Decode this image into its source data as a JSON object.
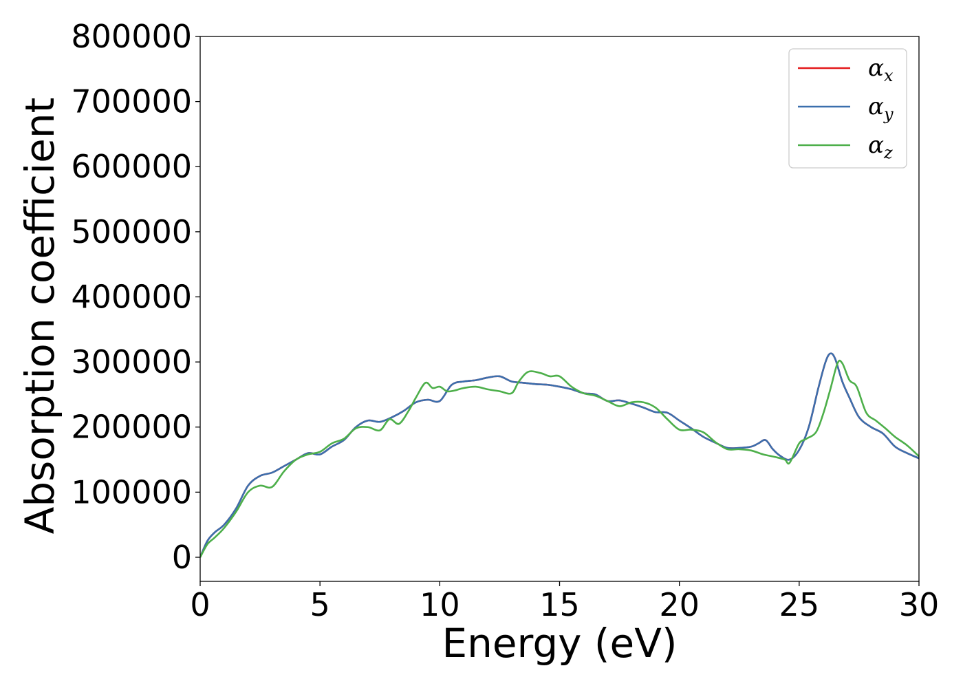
{
  "chart_data": {
    "type": "line",
    "xlabel": "Energy (eV)",
    "ylabel": "Absorption coefficient",
    "xlim": [
      0,
      30
    ],
    "ylim": [
      -37000,
      800000
    ],
    "x_ticks": [
      "0",
      "5",
      "10",
      "15",
      "20",
      "25",
      "30"
    ],
    "y_ticks": [
      "0",
      "100000",
      "200000",
      "300000",
      "400000",
      "500000",
      "600000",
      "700000",
      "800000"
    ],
    "grid": false,
    "legend_position": "top-right",
    "series": [
      {
        "name": "α_x",
        "symbol": "α",
        "subscript": "x",
        "color": "#e41a1c",
        "x": [
          0,
          0.3,
          0.6,
          1.0,
          1.5,
          2.0,
          2.5,
          3.0,
          3.5,
          4.0,
          4.5,
          5.0,
          5.5,
          6.0,
          6.5,
          7.0,
          7.5,
          8.0,
          8.5,
          9.0,
          9.5,
          10.0,
          10.5,
          11.0,
          11.5,
          12.0,
          12.5,
          13.0,
          13.5,
          14.0,
          14.5,
          15.0,
          15.5,
          16.0,
          16.5,
          17.0,
          17.5,
          18.0,
          18.5,
          19.0,
          19.5,
          20.0,
          20.5,
          21.0,
          21.5,
          22.0,
          22.5,
          23.0,
          23.3,
          23.6,
          23.9,
          24.2,
          24.6,
          25.0,
          25.4,
          25.8,
          26.1,
          26.3,
          26.5,
          26.8,
          27.1,
          27.5,
          28.0,
          28.5,
          29.0,
          29.5,
          30.0
        ],
        "values": [
          0,
          25000,
          38000,
          50000,
          75000,
          110000,
          125000,
          130000,
          140000,
          150000,
          160000,
          158000,
          170000,
          180000,
          200000,
          210000,
          208000,
          215000,
          225000,
          238000,
          242000,
          240000,
          265000,
          270000,
          272000,
          276000,
          278000,
          270000,
          268000,
          266000,
          265000,
          262000,
          258000,
          252000,
          250000,
          240000,
          241000,
          236000,
          230000,
          223000,
          222000,
          210000,
          198000,
          185000,
          176000,
          168000,
          168000,
          170000,
          175000,
          180000,
          166000,
          156000,
          150000,
          165000,
          200000,
          260000,
          300000,
          313000,
          305000,
          270000,
          245000,
          215000,
          200000,
          190000,
          170000,
          160000,
          152000
        ]
      },
      {
        "name": "α_y",
        "symbol": "α",
        "subscript": "y",
        "color": "#3b6fad",
        "x": [
          0,
          0.3,
          0.6,
          1.0,
          1.5,
          2.0,
          2.5,
          3.0,
          3.5,
          4.0,
          4.5,
          5.0,
          5.5,
          6.0,
          6.5,
          7.0,
          7.5,
          8.0,
          8.5,
          9.0,
          9.5,
          10.0,
          10.5,
          11.0,
          11.5,
          12.0,
          12.5,
          13.0,
          13.5,
          14.0,
          14.5,
          15.0,
          15.5,
          16.0,
          16.5,
          17.0,
          17.5,
          18.0,
          18.5,
          19.0,
          19.5,
          20.0,
          20.5,
          21.0,
          21.5,
          22.0,
          22.5,
          23.0,
          23.3,
          23.6,
          23.9,
          24.2,
          24.6,
          25.0,
          25.4,
          25.8,
          26.1,
          26.3,
          26.5,
          26.8,
          27.1,
          27.5,
          28.0,
          28.5,
          29.0,
          29.5,
          30.0
        ],
        "values": [
          0,
          25000,
          38000,
          50000,
          75000,
          110000,
          125000,
          130000,
          140000,
          150000,
          160000,
          158000,
          170000,
          180000,
          200000,
          210000,
          208000,
          215000,
          225000,
          238000,
          242000,
          240000,
          265000,
          270000,
          272000,
          276000,
          278000,
          270000,
          268000,
          266000,
          265000,
          262000,
          258000,
          252000,
          250000,
          240000,
          241000,
          236000,
          230000,
          223000,
          222000,
          210000,
          198000,
          185000,
          176000,
          168000,
          168000,
          170000,
          175000,
          180000,
          166000,
          156000,
          150000,
          165000,
          200000,
          260000,
          300000,
          313000,
          305000,
          270000,
          245000,
          215000,
          200000,
          190000,
          170000,
          160000,
          152000
        ]
      },
      {
        "name": "α_z",
        "symbol": "α",
        "subscript": "z",
        "color": "#4daf4a",
        "x": [
          0,
          0.3,
          0.6,
          1.0,
          1.5,
          2.0,
          2.5,
          3.0,
          3.5,
          4.0,
          4.5,
          5.0,
          5.5,
          6.0,
          6.5,
          7.0,
          7.5,
          7.9,
          8.3,
          8.7,
          9.0,
          9.4,
          9.7,
          10.0,
          10.3,
          10.6,
          11.0,
          11.5,
          12.0,
          12.5,
          13.0,
          13.3,
          13.7,
          14.2,
          14.6,
          15.0,
          15.5,
          16.0,
          16.5,
          17.0,
          17.5,
          18.0,
          18.5,
          19.0,
          19.5,
          20.0,
          20.5,
          21.0,
          21.5,
          22.0,
          22.5,
          23.0,
          23.5,
          24.0,
          24.4,
          24.6,
          25.0,
          25.3,
          25.7,
          26.0,
          26.3,
          26.6,
          26.8,
          27.1,
          27.4,
          27.8,
          28.2,
          28.6,
          29.0,
          29.5,
          30.0
        ],
        "values": [
          0,
          20000,
          30000,
          45000,
          70000,
          100000,
          110000,
          108000,
          132000,
          150000,
          158000,
          162000,
          175000,
          182000,
          198000,
          200000,
          195000,
          212000,
          205000,
          225000,
          245000,
          268000,
          260000,
          262000,
          255000,
          256000,
          260000,
          262000,
          258000,
          255000,
          252000,
          270000,
          285000,
          283000,
          278000,
          278000,
          262000,
          252000,
          248000,
          240000,
          232000,
          238000,
          238000,
          230000,
          212000,
          196000,
          196000,
          192000,
          177000,
          166000,
          166000,
          164000,
          158000,
          154000,
          150000,
          145000,
          175000,
          182000,
          192000,
          220000,
          258000,
          298000,
          298000,
          272000,
          262000,
          222000,
          210000,
          198000,
          185000,
          172000,
          155000
        ]
      }
    ]
  }
}
